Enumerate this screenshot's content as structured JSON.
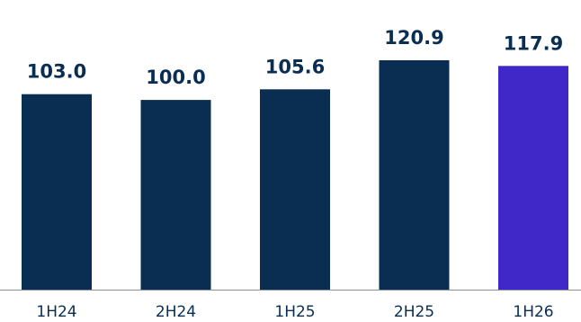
{
  "chart_data": {
    "type": "bar",
    "title": "",
    "xlabel": "",
    "ylabel": "",
    "categories": [
      "1H24",
      "2H24",
      "1H25",
      "2H25",
      "1H26"
    ],
    "values": [
      103.0,
      100.0,
      105.6,
      120.9,
      117.9
    ],
    "value_labels": [
      "103.0",
      "100.0",
      "105.6",
      "120.9",
      "117.9"
    ],
    "ylim": [
      0,
      128
    ],
    "grid": false,
    "legend": "none",
    "bar_colors": [
      "#0a2d52",
      "#0a2d52",
      "#0a2d52",
      "#0a2d52",
      "#3f27c8"
    ],
    "label_color": "#0a2d52",
    "tick_color": "#0a2d52",
    "axis_color": "#8a8f96"
  }
}
